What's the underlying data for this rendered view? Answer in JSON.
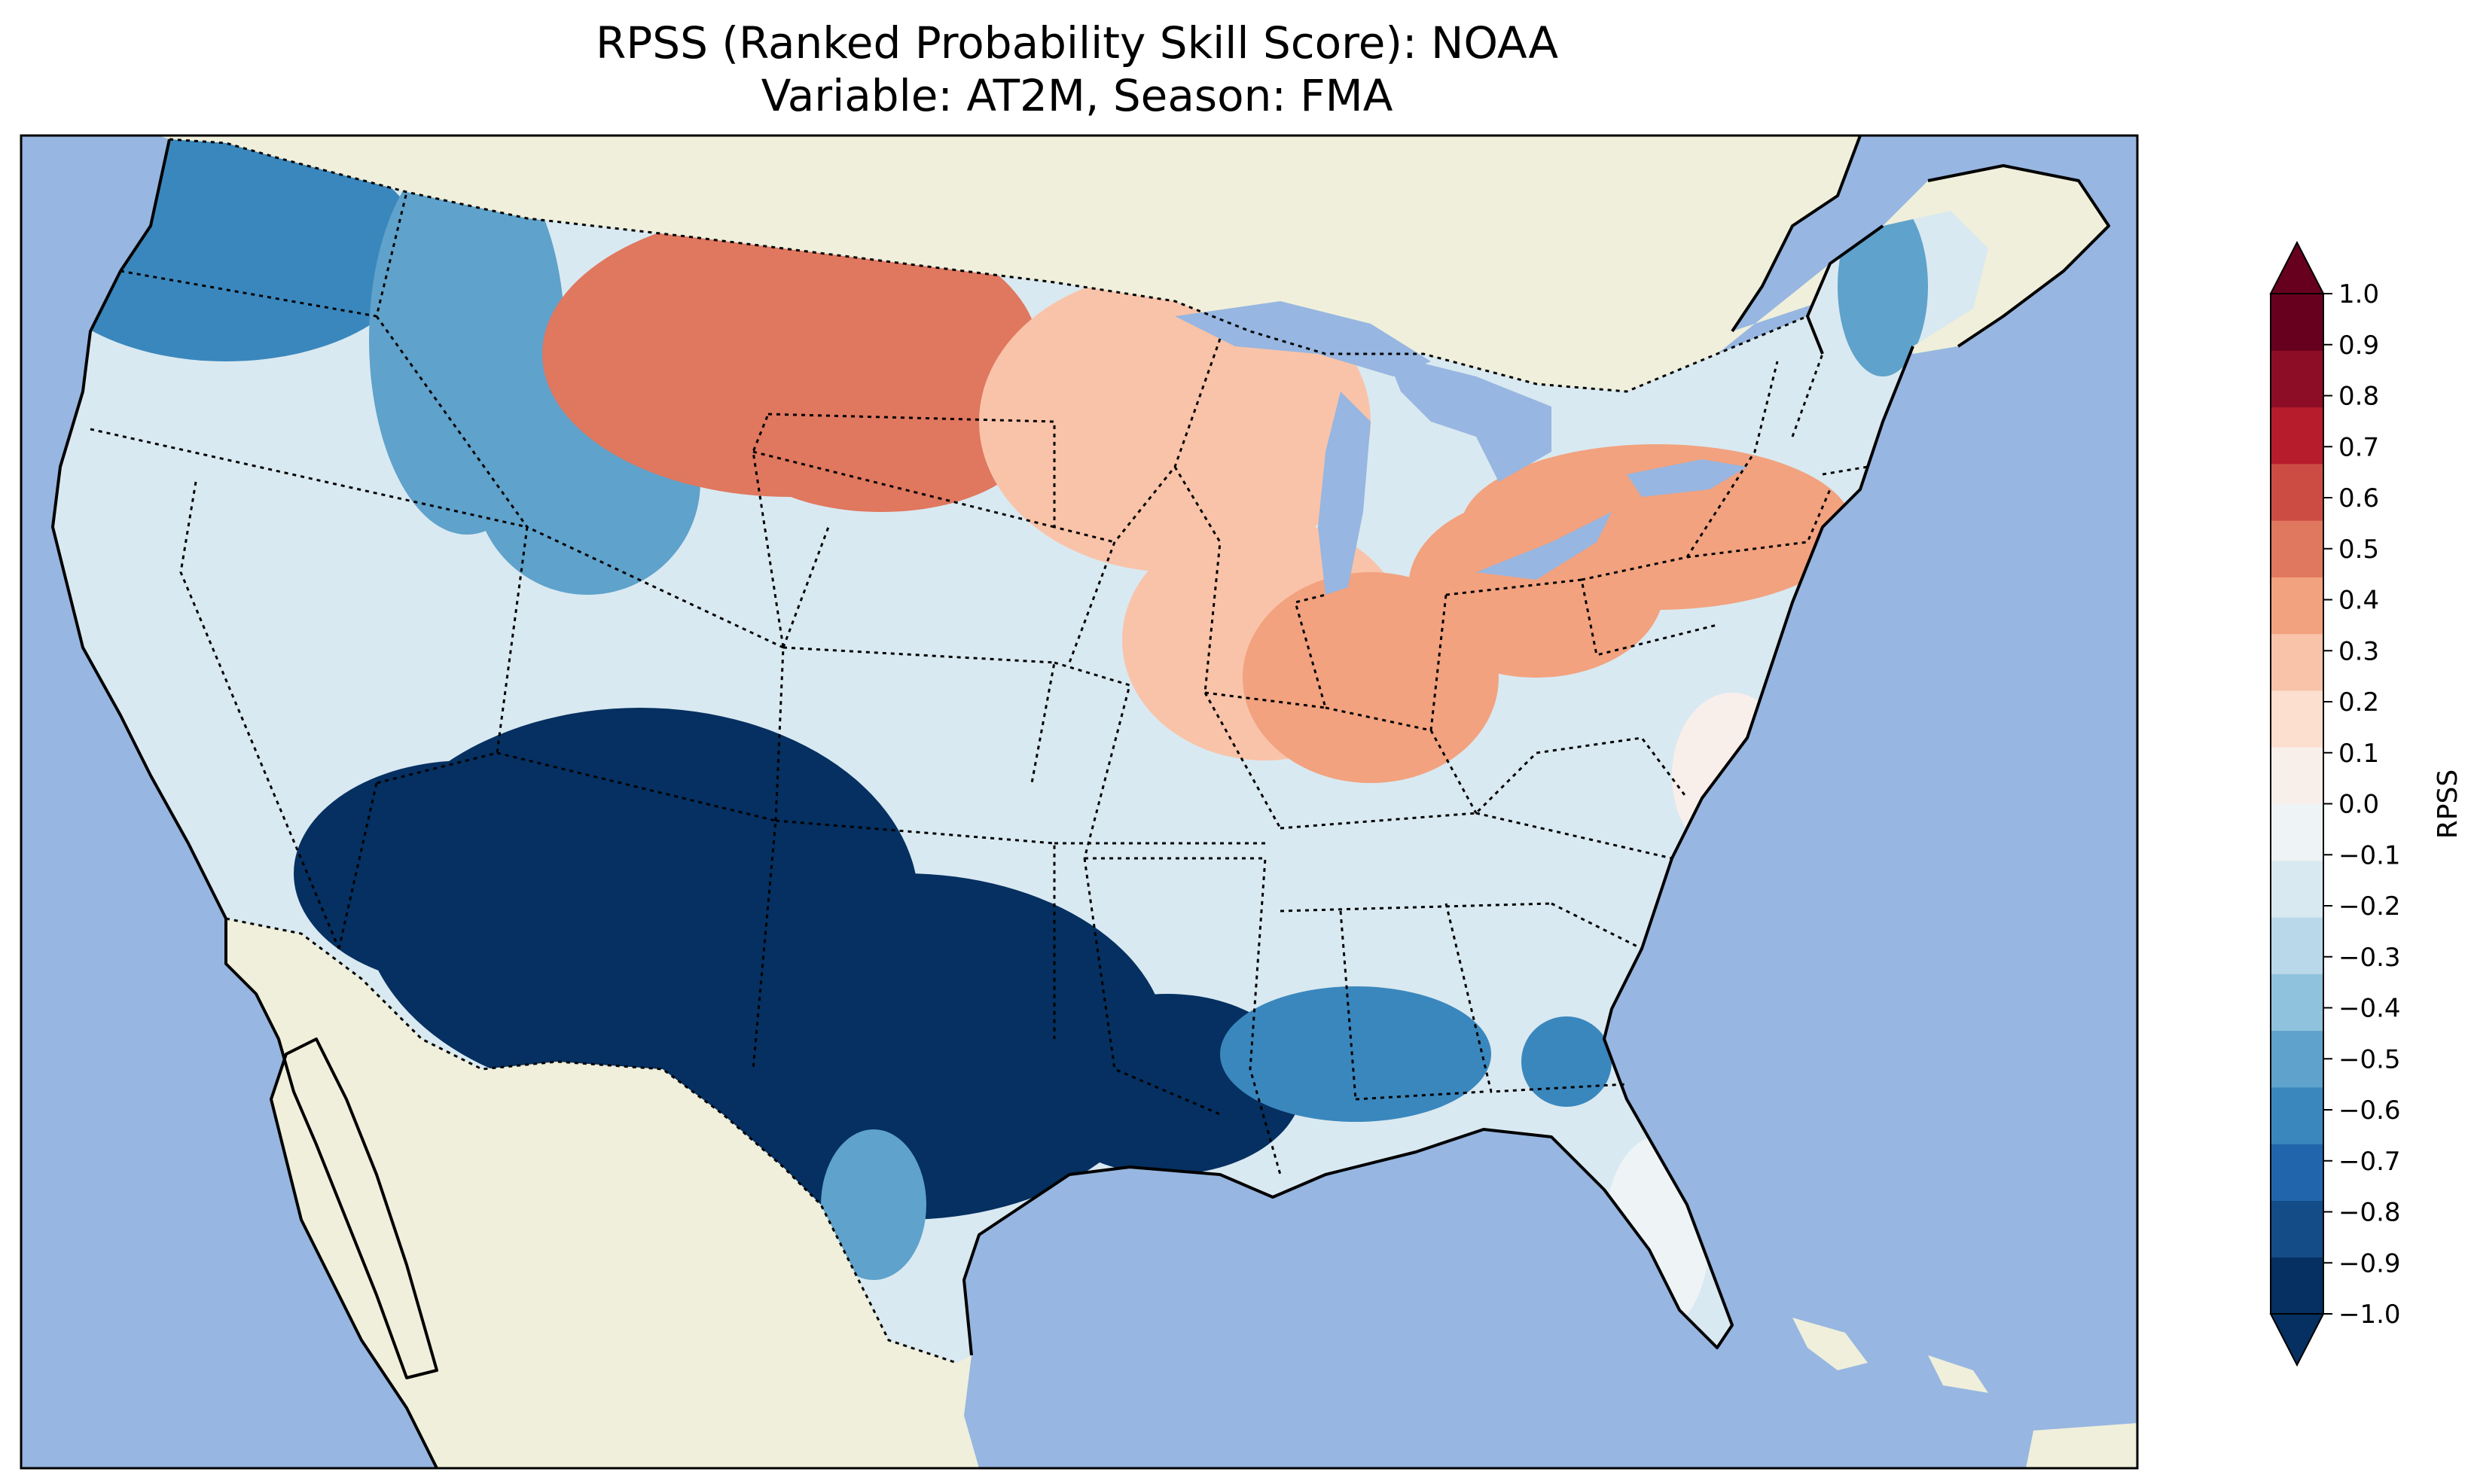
{
  "title": {
    "line1": "RPSS (Ranked Probability Skill Score): NOAA",
    "line2": "Variable: AT2M, Season: FMA"
  },
  "colors": {
    "ocean": "#97b6e1",
    "land": "#efefdb",
    "lakes": "#97b6e1",
    "coast": "#000000",
    "colormap": [
      "#053061",
      "#134c87",
      "#2166ac",
      "#3a87bd",
      "#5fa2cb",
      "#8fc2dd",
      "#b9d8e9",
      "#d9e9f1",
      "#eef3f6",
      "#f8efeb",
      "#fcdfcf",
      "#f9c3a9",
      "#f2a27f",
      "#e0775f",
      "#cc4c44",
      "#b71c2d",
      "#8c0d25",
      "#67001f"
    ]
  },
  "colorbar": {
    "label": "RPSS",
    "ticks": [
      "−1.0",
      "−0.9",
      "−0.8",
      "−0.7",
      "−0.6",
      "−0.5",
      "−0.4",
      "−0.3",
      "−0.2",
      "−0.1",
      "0.0",
      "0.1",
      "0.2",
      "0.3",
      "0.4",
      "0.5",
      "0.6",
      "0.7",
      "0.8",
      "0.9",
      "1.0"
    ],
    "min": -1.0,
    "max": 1.0,
    "extend": "both"
  },
  "regions": [
    {
      "name": "pacific-northwest",
      "value": -0.6
    },
    {
      "name": "northern-rockies",
      "value": -0.5
    },
    {
      "name": "california-great-basin",
      "value": -0.15
    },
    {
      "name": "northern-plains",
      "value": 0.45
    },
    {
      "name": "upper-midwest",
      "value": 0.25
    },
    {
      "name": "ohio-valley",
      "value": 0.4
    },
    {
      "name": "northeast",
      "value": 0.4
    },
    {
      "name": "maine",
      "value": -0.5
    },
    {
      "name": "southwest-four-corners",
      "value": -0.95
    },
    {
      "name": "texas-south-central",
      "value": -0.95
    },
    {
      "name": "south-texas",
      "value": -0.5
    },
    {
      "name": "southeast",
      "value": -0.2
    },
    {
      "name": "gulf-coast",
      "value": -0.6
    },
    {
      "name": "florida",
      "value": -0.1
    },
    {
      "name": "mid-atlantic",
      "value": 0.1
    }
  ]
}
